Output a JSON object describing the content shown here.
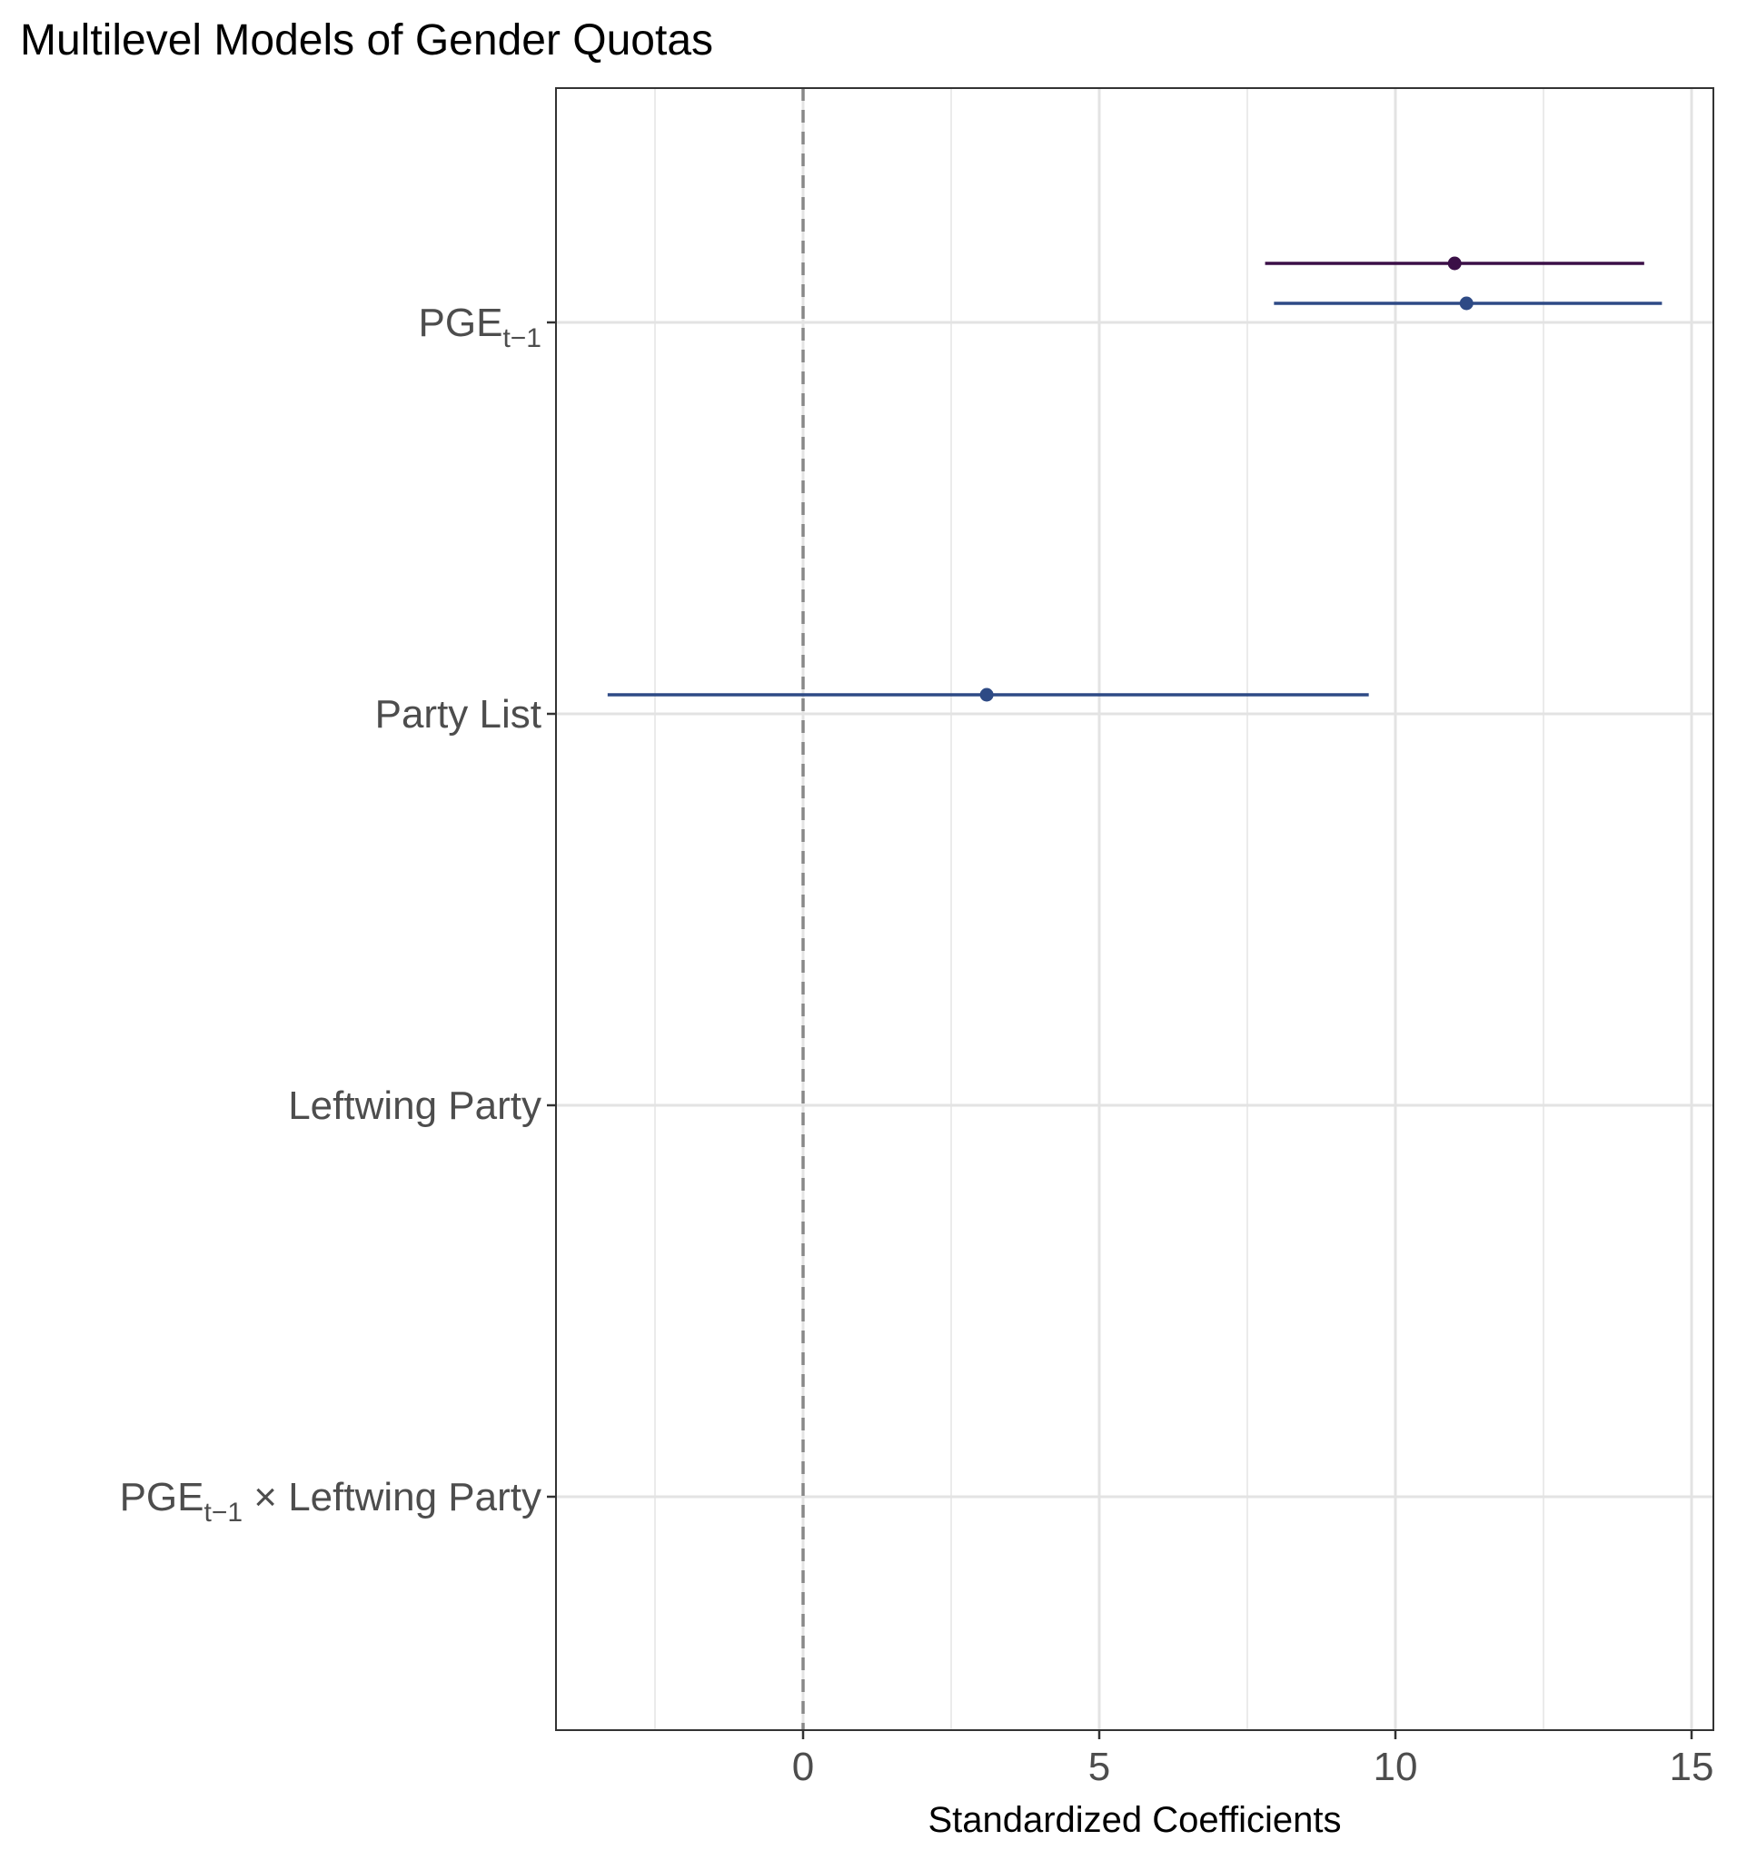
{
  "chart_data": {
    "type": "scatter",
    "subtype": "coefficient-plot",
    "title": "Multilevel Models of Gender Quotas",
    "xlabel": "Standardized Coefficients",
    "ylabel": "",
    "xlim": [
      -4.2,
      15.3
    ],
    "x_ticks": [
      0,
      5,
      10,
      15
    ],
    "x_tick_labels": [
      "0",
      "5",
      "10",
      "15"
    ],
    "x_minor_ticks": [
      -2.5,
      2.5,
      7.5,
      12.5
    ],
    "reference_line": {
      "x": 0,
      "style": "dashed",
      "color": "#888888"
    },
    "grid": true,
    "legend": "none",
    "categories": [
      {
        "id": "pge",
        "base": "PGE",
        "sub": "t−1",
        "suffix": ""
      },
      {
        "id": "party_list",
        "base": "Party List",
        "sub": "",
        "suffix": ""
      },
      {
        "id": "leftwing",
        "base": "Leftwing Party",
        "sub": "",
        "suffix": ""
      },
      {
        "id": "interaction",
        "base": "PGE",
        "sub": "t−1",
        "suffix": " × Leftwing Party"
      }
    ],
    "series": [
      {
        "color": "#3b0f47",
        "points": [
          {
            "category": "pge",
            "estimate": 11.0,
            "low": 7.8,
            "high": 14.2
          }
        ]
      },
      {
        "color": "#2e4a85",
        "points": [
          {
            "category": "pge",
            "estimate": 11.2,
            "low": 7.95,
            "high": 14.5
          },
          {
            "category": "party_list",
            "estimate": 3.1,
            "low": -3.3,
            "high": 9.55
          }
        ]
      }
    ]
  }
}
